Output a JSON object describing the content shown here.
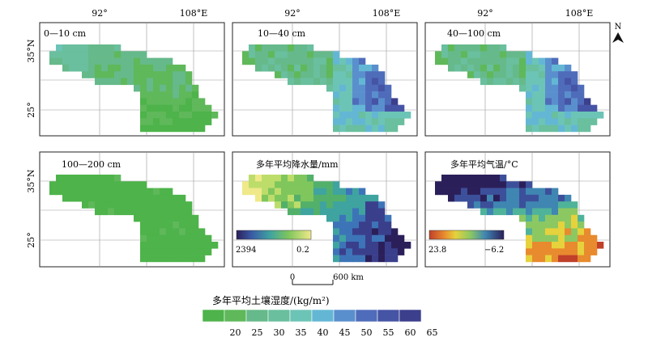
{
  "axes": {
    "lon_labels": [
      "92°",
      "108°E"
    ],
    "lat_labels": [
      "35°N",
      "25°"
    ]
  },
  "north_label": "N",
  "panels": [
    {
      "title": "0—10 cm",
      "layer": "soil_0_10"
    },
    {
      "title": "10—40 cm",
      "layer": "soil_10_40"
    },
    {
      "title": "40—100 cm",
      "layer": "soil_40_100"
    },
    {
      "title": "100—200 cm",
      "layer": "soil_100_200"
    },
    {
      "title": "多年平均降水量/mm",
      "layer": "precip",
      "colorbar": {
        "max_label": "2394",
        "min_label": "0.2"
      }
    },
    {
      "title": "多年平均气温/°C",
      "layer": "temp",
      "colorbar": {
        "max_label": "23.8",
        "min_label": "−6.2"
      }
    }
  ],
  "scale_bar": {
    "zero_label": "0",
    "end_label": "600 km"
  },
  "legend": {
    "title": "多年平均土壤湿度/(kg/m²)",
    "ticks": [
      "20",
      "25",
      "30",
      "35",
      "40",
      "45",
      "50",
      "55",
      "60",
      "65"
    ],
    "colors": [
      "#4db34a",
      "#5fb85a",
      "#66b98a",
      "#69bf9e",
      "#6cc4b6",
      "#63b7d4",
      "#5a8fcd",
      "#4f6cba",
      "#4654a6",
      "#3b3f8c"
    ]
  },
  "ramps": {
    "precip": [
      "#efe98a",
      "#bddd6a",
      "#7fc65c",
      "#52b06a",
      "#3fa3a0",
      "#3d74b8",
      "#3a3f8c",
      "#2b1f5a"
    ],
    "temp": [
      "#2b1f5a",
      "#3c4f9a",
      "#3f86b2",
      "#4fb39a",
      "#8cc862",
      "#e6d23c",
      "#e88a2e",
      "#c0402a"
    ]
  }
}
